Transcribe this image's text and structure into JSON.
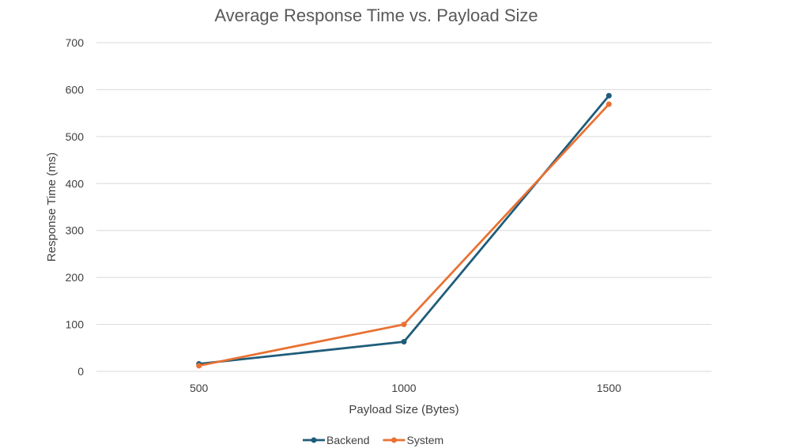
{
  "chart_data": {
    "type": "line",
    "title": "Average Response Time vs. Payload Size",
    "xlabel": "Payload Size (Bytes)",
    "ylabel": "Response Time (ms)",
    "categories": [
      "500",
      "1000",
      "1500"
    ],
    "x": [
      500,
      1000,
      1500
    ],
    "ylim": [
      0,
      700
    ],
    "yticks": [
      0,
      100,
      200,
      300,
      400,
      500,
      600,
      700
    ],
    "grid": true,
    "legend_position": "bottom",
    "series": [
      {
        "name": "Backend",
        "color": "#1f5c7a",
        "values": [
          16,
          63,
          587
        ]
      },
      {
        "name": "System",
        "color": "#e97132",
        "values": [
          12,
          100,
          569
        ]
      }
    ]
  }
}
